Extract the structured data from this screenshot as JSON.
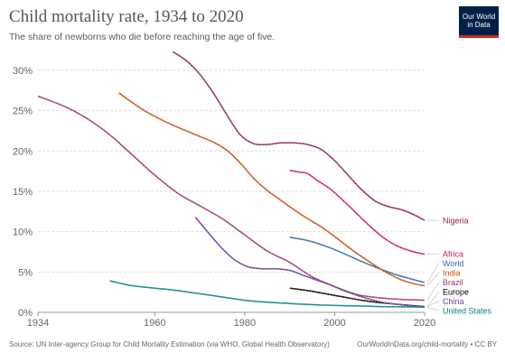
{
  "header": {
    "title": "Child mortality rate, 1934 to 2020",
    "subtitle": "The share of newborns who die before reaching the age of five.",
    "logo_text": "Our World\nin Data"
  },
  "footer": {
    "source": "Source: UN Inter-agency Group for Child Mortality Estimation (via WHO, Global Health Observatory)",
    "attribution": "OurWorldInData.org/child-mortality • CC BY"
  },
  "colors": {
    "grid": "#dddddd",
    "axis": "#999999",
    "tick_text": "#666666",
    "logo_bg": "#002147",
    "logo_accent": "#ce261e"
  },
  "chart_data": {
    "type": "line",
    "title": "Child mortality rate, 1934 to 2020",
    "subtitle": "The share of newborns who die before reaching the age of five.",
    "x_ticks": [
      1934,
      1960,
      1980,
      2000,
      2020
    ],
    "y_ticks": [
      0,
      5,
      10,
      15,
      20,
      25,
      30
    ],
    "y_tick_labels": [
      "0%",
      "5%",
      "10%",
      "15%",
      "20%",
      "25%",
      "30%"
    ],
    "xlim": [
      1934,
      2020
    ],
    "ylim": [
      0,
      32
    ],
    "grid": true,
    "legend": "right, labels at line ends",
    "series": [
      {
        "name": "Nigeria",
        "color": "#8c2745",
        "x": [
          1964,
          1967,
          1970,
          1973,
          1976,
          1979,
          1982,
          1985,
          1988,
          1991,
          1994,
          1997,
          2000,
          2003,
          2006,
          2009,
          2012,
          2015,
          2018,
          2020
        ],
        "y": [
          32.3,
          31.2,
          29.5,
          27.2,
          24.5,
          22.0,
          20.9,
          20.8,
          21.0,
          21.0,
          20.8,
          20.2,
          18.8,
          17.0,
          15.2,
          13.8,
          13.1,
          12.7,
          12.0,
          11.4
        ]
      },
      {
        "name": "Africa",
        "color": "#d6175c",
        "x": [
          1990,
          1992,
          1994,
          1996,
          1999,
          2002,
          2005,
          2008,
          2011,
          2014,
          2017,
          2020
        ],
        "y": [
          17.6,
          17.4,
          17.2,
          16.4,
          15.3,
          13.8,
          12.2,
          10.6,
          9.2,
          8.2,
          7.6,
          7.2
        ]
      },
      {
        "name": "World",
        "color": "#2e6aad",
        "x": [
          1990,
          1994,
          1998,
          2002,
          2006,
          2010,
          2014,
          2018,
          2020
        ],
        "y": [
          9.3,
          8.9,
          8.2,
          7.3,
          6.3,
          5.4,
          4.6,
          4.0,
          3.7
        ]
      },
      {
        "name": "India",
        "color": "#c94e0c",
        "x": [
          1952,
          1955,
          1958,
          1961,
          1964,
          1967,
          1970,
          1973,
          1976,
          1979,
          1982,
          1985,
          1988,
          1991,
          1994,
          1997,
          2000,
          2003,
          2006,
          2009,
          2012,
          2015,
          2018,
          2020
        ],
        "y": [
          27.2,
          26.0,
          24.9,
          24.0,
          23.2,
          22.5,
          21.8,
          21.1,
          20.1,
          18.5,
          16.6,
          15.1,
          13.9,
          12.7,
          11.6,
          10.6,
          9.4,
          8.1,
          6.9,
          5.8,
          4.8,
          4.0,
          3.5,
          3.3
        ]
      },
      {
        "name": "Brazil",
        "color": "#a2366b",
        "x": [
          1934,
          1940,
          1945,
          1950,
          1955,
          1960,
          1965,
          1970,
          1975,
          1980,
          1985,
          1990,
          1995,
          2000,
          2005,
          2010,
          2015,
          2020
        ],
        "y": [
          26.8,
          25.5,
          24.0,
          22.0,
          19.5,
          17.0,
          14.8,
          13.2,
          11.6,
          9.6,
          7.6,
          6.2,
          4.4,
          3.2,
          2.2,
          1.8,
          1.6,
          1.5
        ]
      },
      {
        "name": "Europe",
        "color": "#000000",
        "x": [
          1990,
          1994,
          1998,
          2002,
          2006,
          2010,
          2014,
          2018,
          2020
        ],
        "y": [
          3.0,
          2.7,
          2.3,
          1.9,
          1.5,
          1.2,
          1.0,
          0.8,
          0.7
        ]
      },
      {
        "name": "China",
        "color": "#6d3e91",
        "x": [
          1969,
          1972,
          1975,
          1978,
          1981,
          1984,
          1987,
          1990,
          1993,
          1996,
          1999,
          2002,
          2005,
          2008,
          2011,
          2014,
          2017,
          2020
        ],
        "y": [
          11.8,
          9.8,
          7.9,
          6.4,
          5.6,
          5.4,
          5.4,
          5.2,
          4.6,
          4.0,
          3.4,
          2.7,
          2.1,
          1.6,
          1.2,
          1.0,
          0.8,
          0.7
        ]
      },
      {
        "name": "United States",
        "color": "#00847e",
        "x": [
          1950,
          1955,
          1960,
          1965,
          1970,
          1975,
          1980,
          1985,
          1990,
          1995,
          2000,
          2005,
          2010,
          2015,
          2020
        ],
        "y": [
          3.9,
          3.3,
          3.0,
          2.7,
          2.3,
          1.9,
          1.5,
          1.25,
          1.1,
          0.95,
          0.85,
          0.8,
          0.72,
          0.68,
          0.65
        ]
      }
    ]
  }
}
